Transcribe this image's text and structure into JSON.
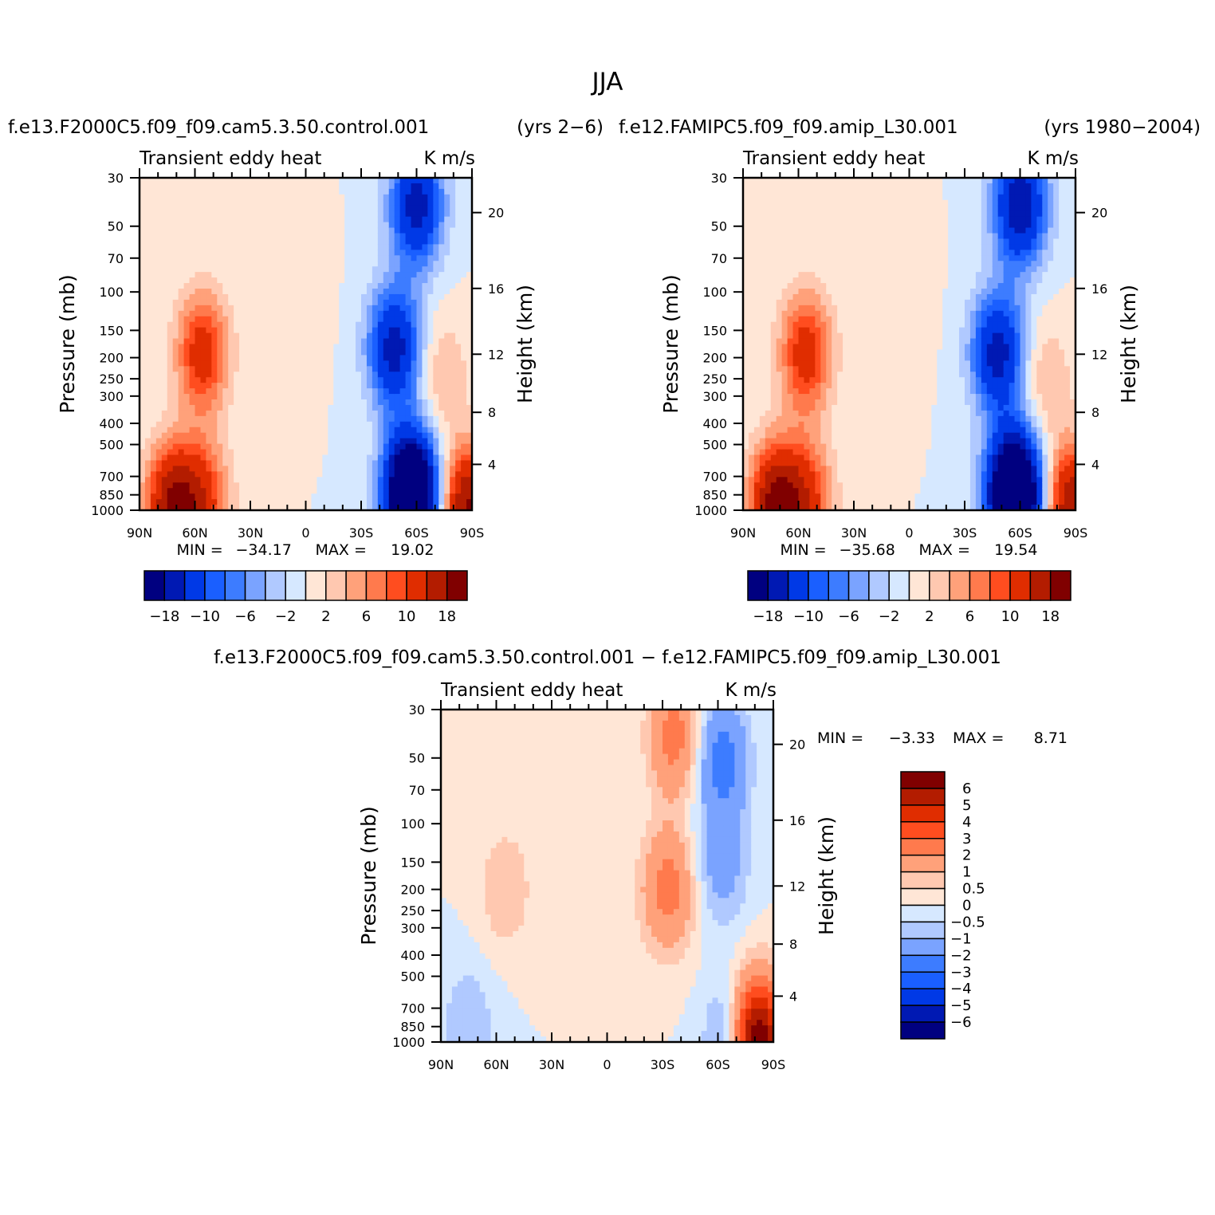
{
  "figure": {
    "title": "JJA",
    "left_case": "f.e13.F2000C5.f09_f09.cam5.3.50.control.001",
    "right_case": "f.e12.FAMIPC5.f09_f09.amip_L30.001",
    "left_years": "(yrs 2−6)",
    "right_years": "(yrs 1980−2004)",
    "diff_title": "f.e13.F2000C5.f09_f09.cam5.3.50.control.001 − f.e12.FAMIPC5.f09_f09.amip_L30.001",
    "variable": "Transient eddy heat",
    "units": "K m/s"
  },
  "axes": {
    "pressure_label": "Pressure (mb)",
    "height_label": "Height (km)",
    "pressure_ticks": [
      "30",
      "50",
      "70",
      "100",
      "150",
      "200",
      "250",
      "300",
      "400",
      "500",
      "700",
      "850",
      "1000"
    ],
    "height_ticks": [
      "20",
      "16",
      "12",
      "8",
      "4"
    ],
    "lat_ticks": [
      "90N",
      "60N",
      "30N",
      "0",
      "30S",
      "60S",
      "90S"
    ]
  },
  "palette_colors": [
    "#000080",
    "#0019b3",
    "#0039e6",
    "#1a5fff",
    "#3d7cff",
    "#7aa3ff",
    "#b0c9ff",
    "#d6e8ff",
    "#ffe6d6",
    "#ffc8b0",
    "#ffa17a",
    "#ff7a4d",
    "#ff4d1f",
    "#e02d00",
    "#b31c00",
    "#800000"
  ],
  "chart_data": [
    {
      "type": "heatmap",
      "name": "control",
      "title": "f.e13.F2000C5.f09_f09.cam5.3.50.control.001 (yrs 2−6)",
      "subtitle": "Transient eddy heat",
      "units": "K m/s",
      "xlabel": "",
      "ylabel": "Pressure (mb)",
      "ylabel_right": "Height (km)",
      "xlim": [
        "90N",
        "90S"
      ],
      "ylim": [
        1000,
        30
      ],
      "y_scale": "log",
      "min_label": "MIN =",
      "min_value": "−34.17",
      "max_label": "MAX =",
      "max_value": "19.02",
      "levels": [
        -18,
        -14,
        -10,
        -8,
        -6,
        -4,
        -2,
        0,
        2,
        4,
        6,
        8,
        10,
        14,
        18
      ],
      "colorbar_labels": [
        "−18",
        "−10",
        "−6",
        "−2",
        "2",
        "6",
        "10",
        "18"
      ],
      "colorbar_orientation": "horizontal",
      "features": [
        {
          "lat": 72,
          "p": 960,
          "value": 18
        },
        {
          "lat": 56,
          "p": 190,
          "value": 12
        },
        {
          "lat": 55,
          "p": 900,
          "value": 10
        },
        {
          "lat": 5,
          "p": 110,
          "value": 2
        },
        {
          "lat": -48,
          "p": 180,
          "value": -16
        },
        {
          "lat": -57,
          "p": 850,
          "value": -34.17
        },
        {
          "lat": -60,
          "p": 40,
          "value": -16
        },
        {
          "lat": -74,
          "p": 240,
          "value": 4
        },
        {
          "lat": -88,
          "p": 990,
          "value": 19.02
        }
      ]
    },
    {
      "type": "heatmap",
      "name": "amip",
      "title": "f.e12.FAMIPC5.f09_f09.amip_L30.001 (yrs 1980−2004)",
      "subtitle": "Transient eddy heat",
      "units": "K m/s",
      "xlabel": "",
      "ylabel": "Pressure (mb)",
      "ylabel_right": "Height (km)",
      "xlim": [
        "90N",
        "90S"
      ],
      "ylim": [
        1000,
        30
      ],
      "y_scale": "log",
      "min_label": "MIN =",
      "min_value": "−35.68",
      "max_label": "MAX =",
      "max_value": "19.54",
      "levels": [
        -18,
        -14,
        -10,
        -8,
        -6,
        -4,
        -2,
        0,
        2,
        4,
        6,
        8,
        10,
        14,
        18
      ],
      "colorbar_labels": [
        "−18",
        "−10",
        "−6",
        "−2",
        "2",
        "6",
        "10",
        "18"
      ],
      "colorbar_orientation": "horizontal",
      "features": [
        {
          "lat": 72,
          "p": 960,
          "value": 19.54
        },
        {
          "lat": 56,
          "p": 190,
          "value": 12
        },
        {
          "lat": 55,
          "p": 900,
          "value": 10
        },
        {
          "lat": 5,
          "p": 110,
          "value": 2
        },
        {
          "lat": -48,
          "p": 190,
          "value": -16
        },
        {
          "lat": -57,
          "p": 850,
          "value": -35.68
        },
        {
          "lat": -60,
          "p": 40,
          "value": -18
        },
        {
          "lat": -74,
          "p": 260,
          "value": 4
        },
        {
          "lat": -88,
          "p": 990,
          "value": 18
        }
      ]
    },
    {
      "type": "heatmap",
      "name": "difference",
      "title": "f.e13.F2000C5.f09_f09.cam5.3.50.control.001 − f.e12.FAMIPC5.f09_f09.amip_L30.001",
      "subtitle": "Transient eddy heat",
      "units": "K m/s",
      "xlabel": "",
      "ylabel": "Pressure (mb)",
      "ylabel_right": "Height (km)",
      "xlim": [
        "90N",
        "90S"
      ],
      "ylim": [
        1000,
        30
      ],
      "y_scale": "log",
      "min_label": "MIN =",
      "min_value": "−3.33",
      "max_label": "MAX =",
      "max_value": "8.71",
      "levels": [
        -6,
        -5,
        -4,
        -3,
        -2,
        -1,
        -0.5,
        0,
        0.5,
        1,
        2,
        3,
        4,
        5,
        6
      ],
      "colorbar_labels": [
        "6",
        "5",
        "4",
        "3",
        "2",
        "1",
        "0.5",
        "0",
        "−0.5",
        "−1",
        "−2",
        "−3",
        "−4",
        "−5",
        "−6"
      ],
      "colorbar_orientation": "vertical",
      "features": [
        {
          "lat": -37,
          "p": 40,
          "value": 2.5
        },
        {
          "lat": -33,
          "p": 200,
          "value": 2.5
        },
        {
          "lat": -62,
          "p": 50,
          "value": -2.5
        },
        {
          "lat": -62,
          "p": 150,
          "value": -1.5
        },
        {
          "lat": -80,
          "p": 990,
          "value": 8.71
        },
        {
          "lat": -70,
          "p": 990,
          "value": -3.33
        },
        {
          "lat": 75,
          "p": 850,
          "value": -1
        },
        {
          "lat": 55,
          "p": 200,
          "value": 1
        }
      ]
    }
  ]
}
